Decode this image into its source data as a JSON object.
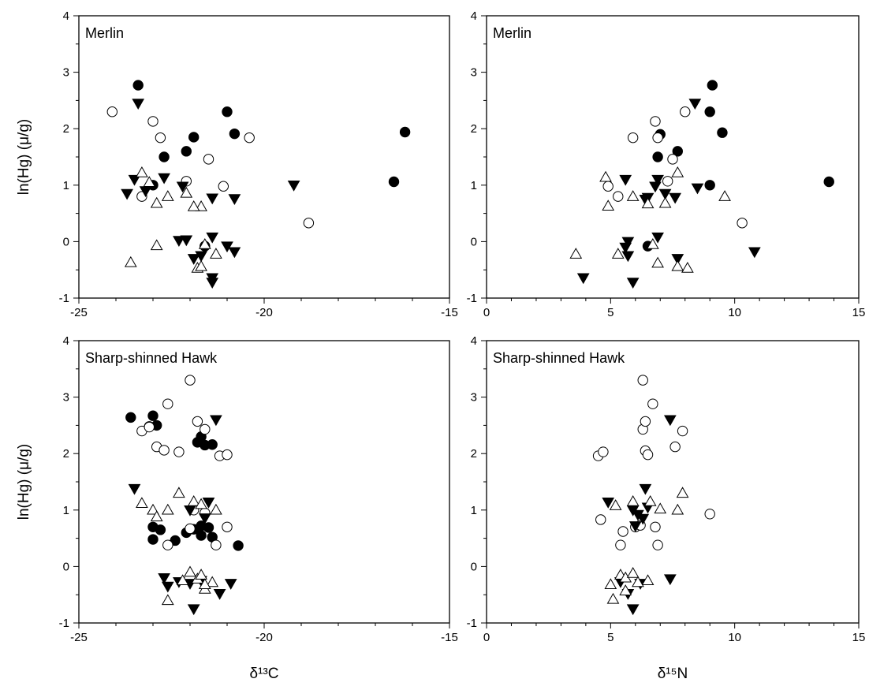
{
  "chart_data": [
    {
      "type": "scatter",
      "title": "Merlin",
      "xlabel": "",
      "ylabel": "ln(Hg) (μ/g)",
      "xlim": [
        -25,
        -15
      ],
      "ylim": [
        -1,
        4
      ],
      "xticks": [
        "-25",
        "-20",
        "-15"
      ],
      "yticks": [
        "-1",
        "0",
        "1",
        "2",
        "3",
        "4"
      ],
      "grid": false,
      "series": [
        {
          "marker": "filled-circle",
          "points": [
            [
              -23.4,
              2.77
            ],
            [
              -21.0,
              2.3
            ],
            [
              -20.8,
              1.91
            ],
            [
              -21.9,
              1.85
            ],
            [
              -22.1,
              1.6
            ],
            [
              -22.7,
              1.5
            ],
            [
              -23.0,
              1.0
            ],
            [
              -21.6,
              -0.08
            ],
            [
              -16.5,
              1.06
            ],
            [
              -16.2,
              1.94
            ]
          ]
        },
        {
          "marker": "open-circle",
          "points": [
            [
              -24.1,
              2.3
            ],
            [
              -23.0,
              2.13
            ],
            [
              -22.8,
              1.84
            ],
            [
              -21.5,
              1.46
            ],
            [
              -22.1,
              1.07
            ],
            [
              -21.1,
              0.98
            ],
            [
              -23.3,
              0.8
            ],
            [
              -20.4,
              1.84
            ],
            [
              -18.8,
              0.33
            ]
          ]
        },
        {
          "marker": "filled-triangle-down",
          "points": [
            [
              -23.4,
              2.45
            ],
            [
              -23.5,
              1.1
            ],
            [
              -23.7,
              0.85
            ],
            [
              -23.2,
              0.9
            ],
            [
              -22.7,
              1.13
            ],
            [
              -22.2,
              0.98
            ],
            [
              -21.4,
              0.77
            ],
            [
              -20.8,
              0.76
            ],
            [
              -19.2,
              1.0
            ],
            [
              -22.3,
              0.02
            ],
            [
              -22.1,
              0.03
            ],
            [
              -21.9,
              -0.3
            ],
            [
              -21.7,
              -0.25
            ],
            [
              -21.4,
              0.08
            ],
            [
              -21.0,
              -0.08
            ],
            [
              -20.8,
              -0.18
            ],
            [
              -21.4,
              -0.64
            ],
            [
              -21.4,
              -0.72
            ]
          ]
        },
        {
          "marker": "open-triangle-up",
          "points": [
            [
              -23.3,
              1.22
            ],
            [
              -23.1,
              1.05
            ],
            [
              -22.9,
              0.68
            ],
            [
              -22.6,
              0.8
            ],
            [
              -22.1,
              0.86
            ],
            [
              -21.7,
              0.62
            ],
            [
              -21.6,
              -0.05
            ],
            [
              -21.3,
              -0.22
            ],
            [
              -22.9,
              -0.07
            ],
            [
              -21.8,
              -0.47
            ],
            [
              -21.7,
              -0.44
            ],
            [
              -23.6,
              -0.37
            ],
            [
              -21.9,
              0.62
            ]
          ]
        }
      ]
    },
    {
      "type": "scatter",
      "title": "Merlin",
      "xlabel": "",
      "ylabel": "",
      "xlim": [
        0,
        15
      ],
      "ylim": [
        -1,
        4
      ],
      "xticks": [
        "0",
        "5",
        "10",
        "15"
      ],
      "yticks": [
        "-1",
        "0",
        "1",
        "2",
        "3",
        "4"
      ],
      "grid": false,
      "series": [
        {
          "marker": "filled-circle",
          "points": [
            [
              9.1,
              2.77
            ],
            [
              9.0,
              2.3
            ],
            [
              9.5,
              1.93
            ],
            [
              7.0,
              1.9
            ],
            [
              7.7,
              1.6
            ],
            [
              6.9,
              1.5
            ],
            [
              9.0,
              1.0
            ],
            [
              6.5,
              -0.08
            ],
            [
              13.8,
              1.06
            ]
          ]
        },
        {
          "marker": "open-circle",
          "points": [
            [
              5.9,
              1.84
            ],
            [
              6.8,
              2.13
            ],
            [
              6.9,
              1.84
            ],
            [
              8.0,
              2.3
            ],
            [
              7.5,
              1.46
            ],
            [
              7.3,
              1.07
            ],
            [
              5.3,
              0.8
            ],
            [
              4.9,
              0.98
            ],
            [
              10.3,
              0.33
            ]
          ]
        },
        {
          "marker": "filled-triangle-down",
          "points": [
            [
              8.4,
              2.45
            ],
            [
              5.6,
              1.1
            ],
            [
              6.5,
              0.78
            ],
            [
              6.8,
              0.98
            ],
            [
              7.2,
              0.85
            ],
            [
              6.4,
              0.75
            ],
            [
              7.6,
              0.78
            ],
            [
              8.5,
              0.95
            ],
            [
              6.9,
              1.1
            ],
            [
              5.7,
              0.0
            ],
            [
              5.6,
              -0.1
            ],
            [
              6.9,
              0.08
            ],
            [
              7.7,
              -0.3
            ],
            [
              10.8,
              -0.18
            ],
            [
              5.9,
              -0.72
            ],
            [
              3.9,
              -0.64
            ],
            [
              5.7,
              -0.25
            ]
          ]
        },
        {
          "marker": "open-triangle-up",
          "points": [
            [
              4.8,
              1.14
            ],
            [
              7.7,
              1.22
            ],
            [
              9.6,
              0.8
            ],
            [
              5.9,
              0.8
            ],
            [
              7.2,
              0.68
            ],
            [
              6.5,
              0.67
            ],
            [
              4.9,
              0.63
            ],
            [
              6.9,
              -0.38
            ],
            [
              8.1,
              -0.47
            ],
            [
              7.7,
              -0.44
            ],
            [
              3.6,
              -0.22
            ],
            [
              5.3,
              -0.22
            ],
            [
              6.7,
              -0.05
            ]
          ]
        }
      ]
    },
    {
      "type": "scatter",
      "title": "Sharp-shinned Hawk",
      "xlabel": "δ¹³C",
      "ylabel": "ln(Hg) (μ/g)",
      "xlim": [
        -25,
        -15
      ],
      "ylim": [
        -1,
        4
      ],
      "xticks": [
        "-25",
        "-20",
        "-15"
      ],
      "yticks": [
        "-1",
        "0",
        "1",
        "2",
        "3",
        "4"
      ],
      "grid": false,
      "series": [
        {
          "marker": "filled-circle",
          "points": [
            [
              -23.6,
              2.64
            ],
            [
              -23.0,
              2.67
            ],
            [
              -23.1,
              2.48
            ],
            [
              -22.9,
              2.5
            ],
            [
              -21.8,
              2.2
            ],
            [
              -21.7,
              2.3
            ],
            [
              -21.6,
              2.15
            ],
            [
              -21.4,
              2.16
            ],
            [
              -23.0,
              0.7
            ],
            [
              -22.8,
              0.65
            ],
            [
              -23.0,
              0.48
            ],
            [
              -22.4,
              0.46
            ],
            [
              -22.1,
              0.6
            ],
            [
              -21.9,
              0.66
            ],
            [
              -21.7,
              0.55
            ],
            [
              -21.5,
              0.69
            ],
            [
              -21.4,
              0.52
            ],
            [
              -21.7,
              0.72
            ],
            [
              -20.7,
              0.37
            ]
          ]
        },
        {
          "marker": "open-circle",
          "points": [
            [
              -22.0,
              3.3
            ],
            [
              -22.6,
              2.88
            ],
            [
              -23.3,
              2.4
            ],
            [
              -23.1,
              2.47
            ],
            [
              -22.9,
              2.12
            ],
            [
              -22.7,
              2.06
            ],
            [
              -22.3,
              2.03
            ],
            [
              -21.8,
              2.57
            ],
            [
              -21.6,
              2.43
            ],
            [
              -21.2,
              1.96
            ],
            [
              -21.0,
              1.98
            ],
            [
              -21.9,
              1.0
            ],
            [
              -22.0,
              0.67
            ],
            [
              -22.6,
              0.38
            ],
            [
              -21.3,
              0.38
            ],
            [
              -21.0,
              0.7
            ],
            [
              -21.6,
              0.95
            ]
          ]
        },
        {
          "marker": "filled-triangle-down",
          "points": [
            [
              -23.5,
              1.38
            ],
            [
              -21.3,
              2.6
            ],
            [
              -21.5,
              1.14
            ],
            [
              -22.0,
              1.0
            ],
            [
              -21.6,
              0.86
            ],
            [
              -22.7,
              -0.2
            ],
            [
              -22.6,
              -0.35
            ],
            [
              -22.3,
              -0.27
            ],
            [
              -22.0,
              -0.3
            ],
            [
              -21.7,
              -0.25
            ],
            [
              -21.2,
              -0.48
            ],
            [
              -20.9,
              -0.3
            ],
            [
              -21.9,
              -0.75
            ]
          ]
        },
        {
          "marker": "open-triangle-up",
          "points": [
            [
              -23.3,
              1.12
            ],
            [
              -23.0,
              1.0
            ],
            [
              -22.6,
              1.0
            ],
            [
              -22.3,
              1.3
            ],
            [
              -21.9,
              1.15
            ],
            [
              -21.7,
              1.1
            ],
            [
              -21.3,
              1.0
            ],
            [
              -22.9,
              0.88
            ],
            [
              -22.0,
              -0.1
            ],
            [
              -21.8,
              -0.22
            ],
            [
              -21.7,
              -0.15
            ],
            [
              -21.6,
              -0.4
            ],
            [
              -21.4,
              -0.28
            ],
            [
              -22.6,
              -0.6
            ],
            [
              -22.2,
              -0.25
            ],
            [
              -21.6,
              -0.32
            ]
          ]
        }
      ]
    },
    {
      "type": "scatter",
      "title": "Sharp-shinned Hawk",
      "xlabel": "δ¹⁵N",
      "ylabel": "",
      "xlim": [
        0,
        15
      ],
      "ylim": [
        -1,
        4
      ],
      "xticks": [
        "0",
        "5",
        "10",
        "15"
      ],
      "yticks": [
        "-1",
        "0",
        "1",
        "2",
        "3",
        "4"
      ],
      "grid": false,
      "series": [
        {
          "marker": "filled-circle",
          "points": []
        },
        {
          "marker": "open-circle",
          "points": [
            [
              6.3,
              3.3
            ],
            [
              6.7,
              2.88
            ],
            [
              6.3,
              2.43
            ],
            [
              6.4,
              2.57
            ],
            [
              6.4,
              2.05
            ],
            [
              6.5,
              1.98
            ],
            [
              4.5,
              1.96
            ],
            [
              4.7,
              2.03
            ],
            [
              7.6,
              2.12
            ],
            [
              7.9,
              2.4
            ],
            [
              4.6,
              0.83
            ],
            [
              5.5,
              0.62
            ],
            [
              6.0,
              0.7
            ],
            [
              6.2,
              0.73
            ],
            [
              6.8,
              0.7
            ],
            [
              5.4,
              0.38
            ],
            [
              6.9,
              0.38
            ],
            [
              9.0,
              0.93
            ]
          ]
        },
        {
          "marker": "filled-triangle-down",
          "points": [
            [
              7.4,
              2.6
            ],
            [
              4.9,
              1.14
            ],
            [
              6.4,
              1.38
            ],
            [
              5.9,
              1.0
            ],
            [
              6.1,
              0.92
            ],
            [
              6.3,
              0.85
            ],
            [
              6.0,
              0.72
            ],
            [
              6.5,
              1.05
            ],
            [
              5.4,
              -0.27
            ],
            [
              5.7,
              -0.48
            ],
            [
              6.2,
              -0.3
            ],
            [
              7.4,
              -0.22
            ],
            [
              5.9,
              -0.75
            ]
          ]
        },
        {
          "marker": "open-triangle-up",
          "points": [
            [
              5.2,
              1.08
            ],
            [
              5.9,
              1.15
            ],
            [
              6.6,
              1.15
            ],
            [
              7.0,
              1.02
            ],
            [
              7.7,
              1.0
            ],
            [
              7.9,
              1.3
            ],
            [
              5.0,
              -0.32
            ],
            [
              5.4,
              -0.15
            ],
            [
              5.6,
              -0.2
            ],
            [
              5.9,
              -0.12
            ],
            [
              6.1,
              -0.28
            ],
            [
              6.5,
              -0.25
            ],
            [
              5.1,
              -0.58
            ],
            [
              5.6,
              -0.43
            ]
          ]
        }
      ]
    }
  ]
}
